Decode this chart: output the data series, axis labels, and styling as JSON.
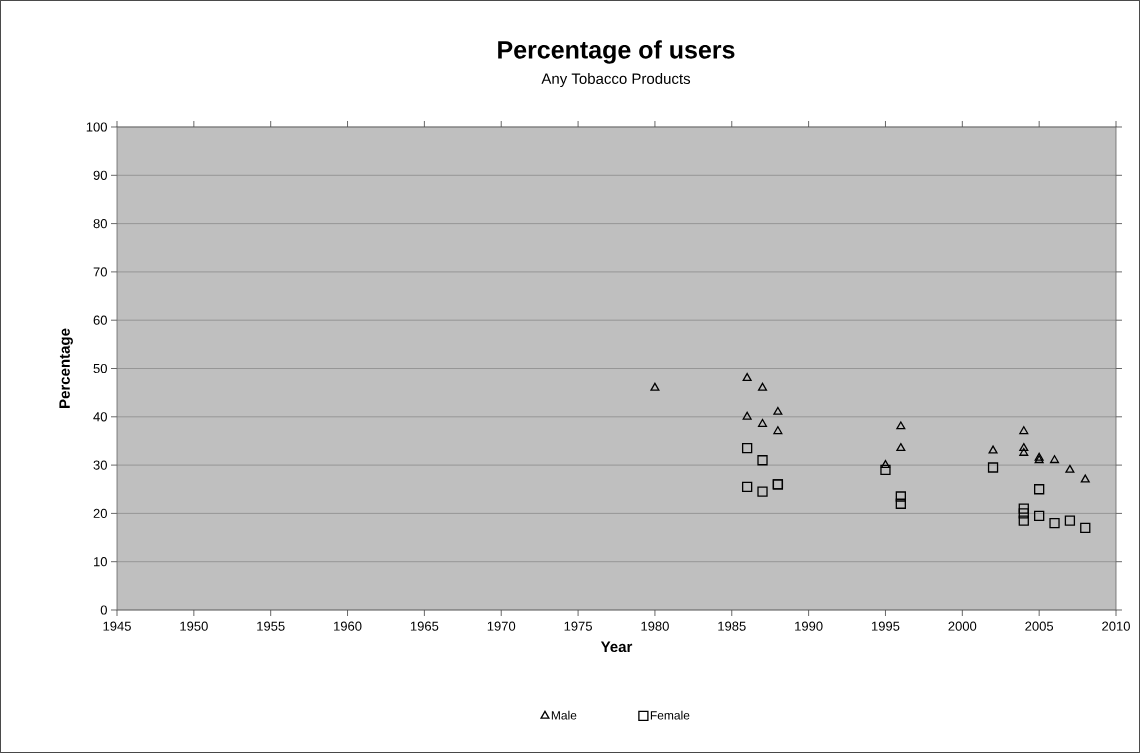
{
  "chart_data": {
    "type": "scatter",
    "title": "Percentage of users",
    "subtitle": "Any Tobacco Products",
    "xlabel": "Year",
    "ylabel": "Percentage",
    "xlim": [
      1945,
      2010
    ],
    "xticks": [
      1945,
      1950,
      1955,
      1960,
      1965,
      1970,
      1975,
      1980,
      1985,
      1990,
      1995,
      2000,
      2005,
      2010
    ],
    "ylim": [
      0,
      100
    ],
    "yticks": [
      0,
      10,
      20,
      30,
      40,
      50,
      60,
      70,
      80,
      90,
      100
    ],
    "grid": "y",
    "legend": "bottom",
    "series": [
      {
        "name": "Male",
        "color": "#000000",
        "marker": "triangle",
        "x": [
          1980,
          1986,
          1986,
          1987,
          1987,
          1988,
          1988,
          1995,
          1996,
          1996,
          2002,
          2004,
          2004,
          2004,
          2005,
          2005,
          2006,
          2007,
          2008
        ],
        "values": [
          46,
          48,
          40,
          46,
          38.5,
          41,
          37,
          30,
          38,
          33.5,
          33,
          37,
          33.5,
          32.5,
          31.5,
          31,
          31,
          29,
          27
        ]
      },
      {
        "name": "Female",
        "color": "#000000",
        "marker": "square",
        "x": [
          1986,
          1986,
          1987,
          1987,
          1988,
          1988,
          1995,
          1996,
          1996,
          2002,
          2004,
          2004,
          2004,
          2005,
          2005,
          2006,
          2007,
          2008
        ],
        "values": [
          33.5,
          25.5,
          31,
          24.5,
          26,
          26,
          29,
          23.5,
          22,
          29.5,
          21,
          20,
          18.5,
          25,
          19.5,
          18,
          18.5,
          17
        ]
      }
    ]
  }
}
